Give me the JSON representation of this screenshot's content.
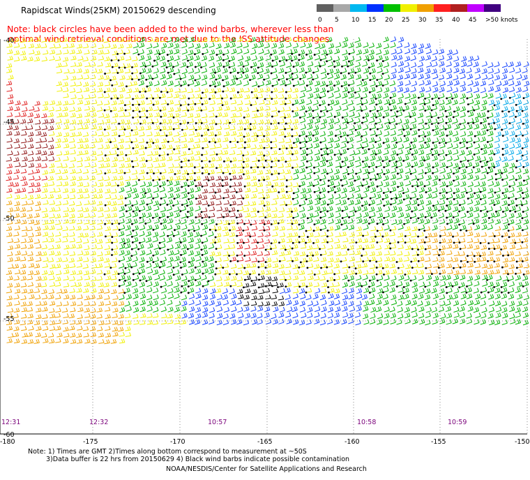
{
  "header": {
    "title": "Rapidscat Winds(25KM) 20150629 descending",
    "note_line1": "Note: black circles have been added to the wind barbs, wherever less than",
    "note_line2": "optimal wind retrieval conditions are met due to the ISS attitude changes."
  },
  "speed_scale": {
    "labels": [
      "0",
      "5",
      "10",
      "15",
      "20",
      "25",
      "30",
      "35",
      "40",
      "45",
      ">50 knots"
    ],
    "colors": [
      "#606060",
      "#a8a8a8",
      "#00b8f0",
      "#0030ff",
      "#00c000",
      "#f0f000",
      "#f0a000",
      "#ff2020",
      "#b02020",
      "#c000ff",
      "#400080"
    ]
  },
  "map": {
    "lon_labels": [
      "-180",
      "-175",
      "-170",
      "-165",
      "-160",
      "-155",
      "-150"
    ],
    "lat_labels": [
      "-40",
      "-45",
      "-50",
      "-55",
      "-60"
    ],
    "times": [
      "12:31",
      "12:32",
      "10:57",
      "10:58",
      "10:59"
    ]
  },
  "footer": {
    "line1": "Note: 1) Times are GMT 2)Times along bottom correspond to measurement at ~50S",
    "line2": "3)Data buffer is 22 hrs from 20150629 4) Black wind barbs indicate possible contamination",
    "credit": "NOAA/NESDIS/Center for Satellite Applications and Research"
  }
}
